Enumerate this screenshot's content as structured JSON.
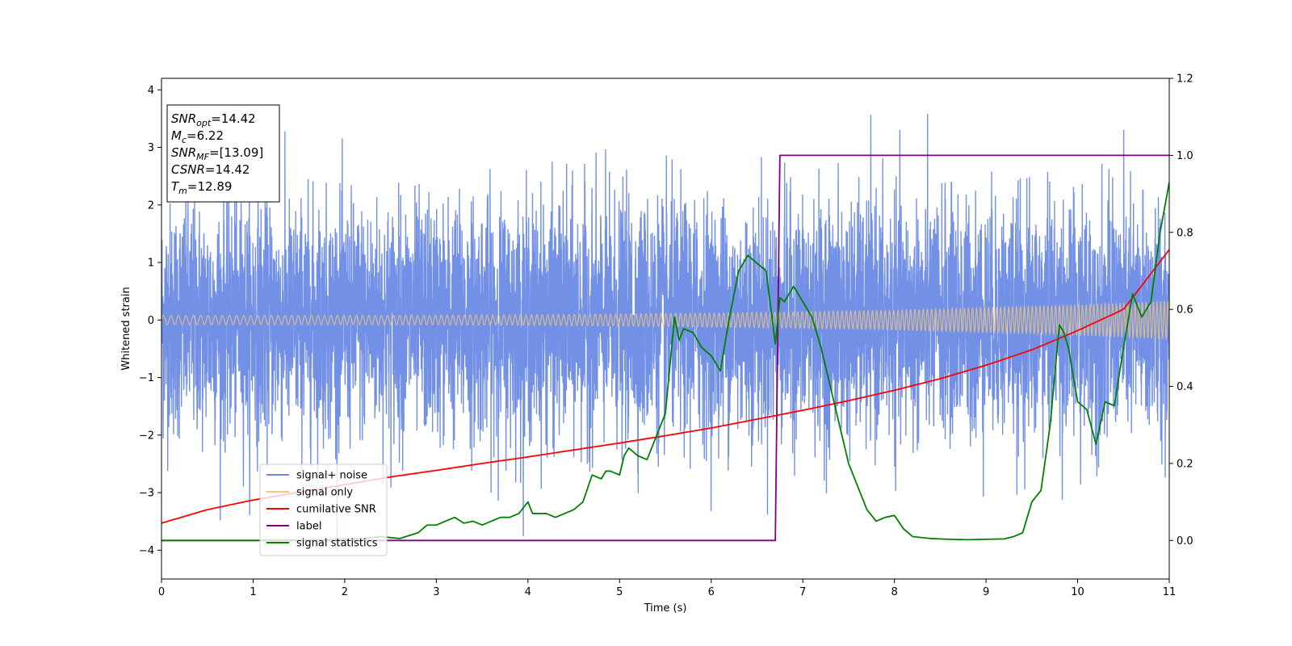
{
  "chart_data": {
    "type": "line",
    "xlabel": "Time (s)",
    "ylabel": "Whitened strain",
    "xlim": [
      0,
      11
    ],
    "ylim": [
      -4.5,
      4.2
    ],
    "y2lim": [
      -0.1,
      1.2
    ],
    "xticks": [
      0,
      1,
      2,
      3,
      4,
      5,
      6,
      7,
      8,
      9,
      10,
      11
    ],
    "yticks": [
      -4,
      -3,
      -2,
      -1,
      0,
      1,
      2,
      3,
      4
    ],
    "yticks_right": [
      0.0,
      0.2,
      0.4,
      0.6,
      0.8,
      1.0,
      1.2
    ],
    "grid": false,
    "legend_position": "lower-left",
    "annotation": {
      "lines": [
        {
          "sym": "SNR",
          "sub": "opt",
          "value": "=14.42"
        },
        {
          "sym": "M",
          "sub": "c",
          "value": "=6.22"
        },
        {
          "sym": "SNR",
          "sub": "MF",
          "value": "=[13.09]"
        },
        {
          "sym": "CSNR",
          "sub": "",
          "value": "=14.42"
        },
        {
          "sym": "T",
          "sub": "m",
          "value": "=12.89"
        }
      ]
    },
    "series": [
      {
        "name": "signal+ noise",
        "color": "#6b8ae6",
        "axis": "left",
        "style": "noise",
        "amplitude_std": 1.0,
        "peak_range": [
          -4.15,
          3.8
        ]
      },
      {
        "name": "signal only",
        "color": "#f5c87a",
        "axis": "left",
        "style": "chirp",
        "envelope": {
          "x": [
            0,
            2,
            4,
            6,
            8,
            10,
            11
          ],
          "y": [
            0.08,
            0.08,
            0.09,
            0.12,
            0.17,
            0.26,
            0.33
          ]
        }
      },
      {
        "name": "cumilative SNR",
        "color": "#ff0000",
        "axis": "right",
        "x": [
          0,
          0.5,
          1,
          1.5,
          2,
          2.5,
          3,
          3.5,
          4,
          4.5,
          5,
          5.5,
          6,
          6.5,
          7,
          7.5,
          8,
          8.5,
          9,
          9.5,
          10,
          10.5,
          11
        ],
        "y": [
          0.045,
          0.08,
          0.105,
          0.125,
          0.145,
          0.165,
          0.182,
          0.2,
          0.217,
          0.235,
          0.253,
          0.272,
          0.292,
          0.315,
          0.338,
          0.363,
          0.39,
          0.42,
          0.455,
          0.495,
          0.545,
          0.6,
          0.755
        ]
      },
      {
        "name": "label",
        "color": "#800080",
        "axis": "right",
        "x": [
          0,
          6.7,
          6.75,
          11
        ],
        "y": [
          0.0,
          0.0,
          1.0,
          1.0
        ]
      },
      {
        "name": "signal statistics",
        "color": "#008000",
        "axis": "right",
        "x": [
          0,
          0.5,
          1,
          1.5,
          2,
          2.2,
          2.4,
          2.6,
          2.8,
          2.9,
          3.0,
          3.1,
          3.2,
          3.3,
          3.4,
          3.5,
          3.6,
          3.7,
          3.8,
          3.9,
          4.0,
          4.05,
          4.1,
          4.2,
          4.3,
          4.4,
          4.5,
          4.6,
          4.7,
          4.8,
          4.85,
          4.9,
          5.0,
          5.05,
          5.1,
          5.2,
          5.3,
          5.4,
          5.5,
          5.6,
          5.65,
          5.7,
          5.8,
          5.9,
          6.0,
          6.1,
          6.2,
          6.3,
          6.4,
          6.5,
          6.6,
          6.7,
          6.75,
          6.8,
          6.9,
          7.0,
          7.1,
          7.2,
          7.3,
          7.4,
          7.5,
          7.6,
          7.7,
          7.8,
          7.9,
          8.0,
          8.1,
          8.2,
          8.4,
          8.6,
          8.8,
          9.0,
          9.2,
          9.3,
          9.4,
          9.5,
          9.6,
          9.7,
          9.8,
          9.85,
          9.9,
          10.0,
          10.1,
          10.2,
          10.3,
          10.4,
          10.5,
          10.6,
          10.7,
          10.8,
          10.9,
          11.0
        ],
        "y": [
          0.0,
          0.0,
          0.0,
          0.001,
          0.003,
          0.005,
          0.01,
          0.005,
          0.02,
          0.04,
          0.04,
          0.05,
          0.06,
          0.045,
          0.05,
          0.04,
          0.05,
          0.06,
          0.06,
          0.07,
          0.1,
          0.07,
          0.07,
          0.07,
          0.06,
          0.07,
          0.08,
          0.1,
          0.17,
          0.16,
          0.18,
          0.18,
          0.17,
          0.22,
          0.24,
          0.22,
          0.21,
          0.27,
          0.33,
          0.58,
          0.52,
          0.55,
          0.54,
          0.5,
          0.48,
          0.44,
          0.58,
          0.7,
          0.74,
          0.72,
          0.7,
          0.51,
          0.63,
          0.62,
          0.66,
          0.62,
          0.58,
          0.5,
          0.4,
          0.3,
          0.2,
          0.14,
          0.08,
          0.05,
          0.06,
          0.065,
          0.03,
          0.01,
          0.005,
          0.003,
          0.002,
          0.003,
          0.004,
          0.01,
          0.02,
          0.1,
          0.13,
          0.3,
          0.56,
          0.54,
          0.5,
          0.36,
          0.34,
          0.25,
          0.36,
          0.35,
          0.5,
          0.64,
          0.58,
          0.62,
          0.8,
          0.93
        ]
      }
    ]
  }
}
